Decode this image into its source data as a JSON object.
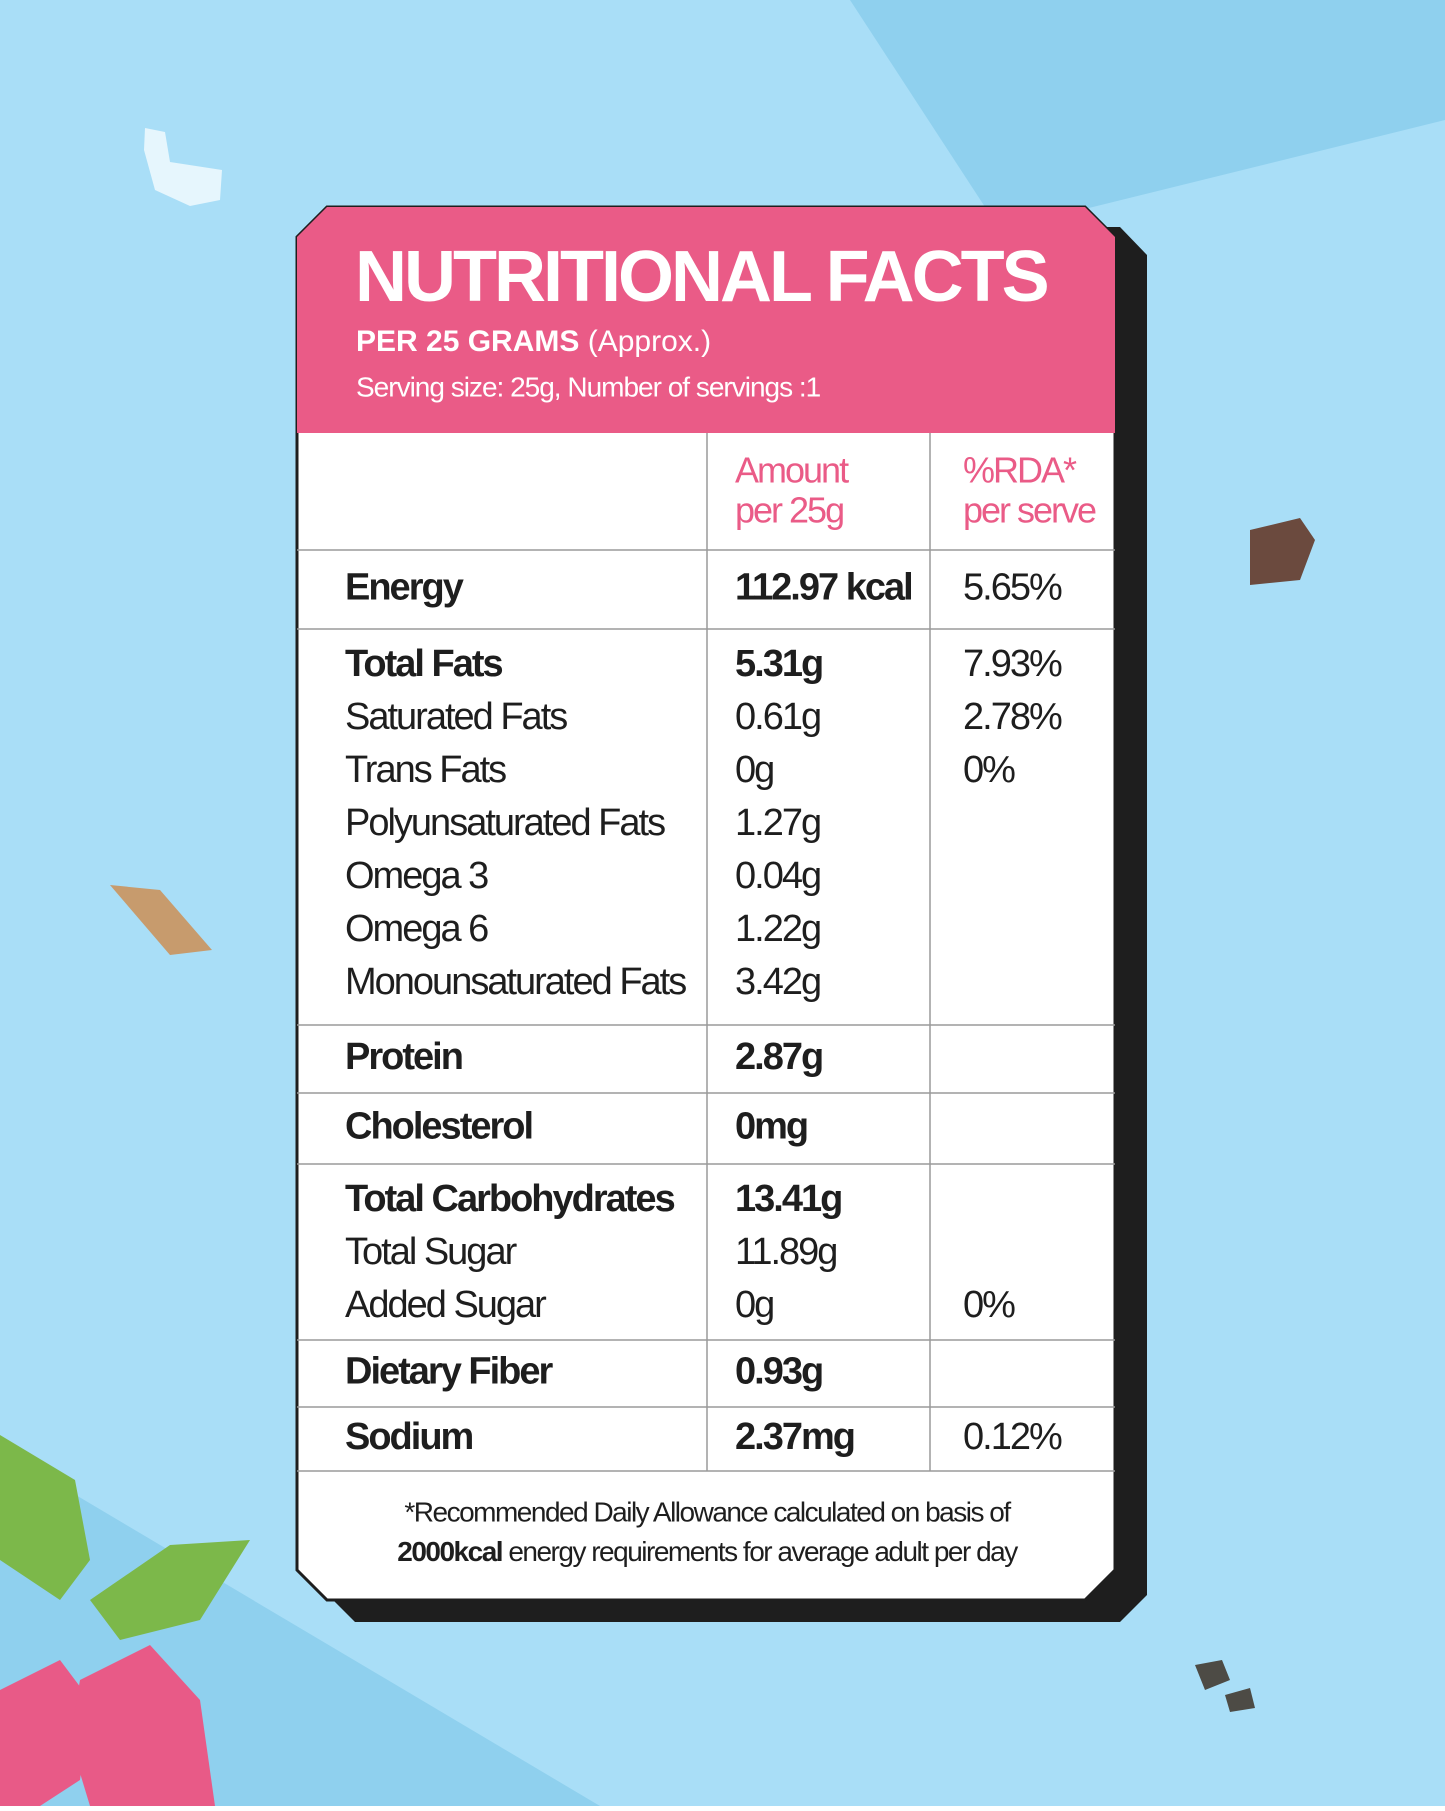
{
  "header": {
    "title": "NUTRITIONAL FACTS",
    "subtitle_bold": "PER 25 GRAMS",
    "subtitle_note": "(Approx.)",
    "serving": "Serving size: 25g, Number of servings :1"
  },
  "columns": {
    "amount": [
      "Amount",
      "per 25g"
    ],
    "rda": [
      "%RDA*",
      "per serve"
    ]
  },
  "rows": [
    {
      "items": [
        {
          "name": "Energy",
          "amount": "112.97 kcal",
          "rda": "5.65%"
        }
      ]
    },
    {
      "items": [
        {
          "name": "Total Fats",
          "amount": "5.31g",
          "rda": "7.93%"
        },
        {
          "name": "Saturated Fats",
          "amount": "0.61g",
          "rda": "2.78%"
        },
        {
          "name": "Trans Fats",
          "amount": "0g",
          "rda": "0%"
        },
        {
          "name": "Polyunsaturated Fats",
          "amount": "1.27g"
        },
        {
          "name": "Omega 3",
          "amount": "0.04g"
        },
        {
          "name": "Omega 6",
          "amount": "1.22g"
        },
        {
          "name": "Monounsaturated  Fats",
          "amount": "3.42g"
        }
      ]
    },
    {
      "items": [
        {
          "name": "Protein",
          "amount": "2.87g"
        }
      ]
    },
    {
      "items": [
        {
          "name": "Cholesterol",
          "amount": "0mg"
        }
      ]
    },
    {
      "items": [
        {
          "name": "Total Carbohydrates",
          "amount": "13.41g"
        },
        {
          "name": "Total Sugar",
          "amount": "11.89g"
        },
        {
          "name": "Added Sugar",
          "amount": "0g",
          "rda": "0%"
        }
      ]
    },
    {
      "items": [
        {
          "name": "Dietary Fiber",
          "amount": "0.93g"
        }
      ]
    },
    {
      "items": [
        {
          "name": "Sodium",
          "amount": "2.37mg",
          "rda": "0.12%"
        }
      ]
    }
  ],
  "footnote": {
    "line1": "*Recommended Daily Allowance  calculated on basis of",
    "line2_bold": "2000kcal",
    "line2_rest": " energy requirements for average adult per day"
  }
}
